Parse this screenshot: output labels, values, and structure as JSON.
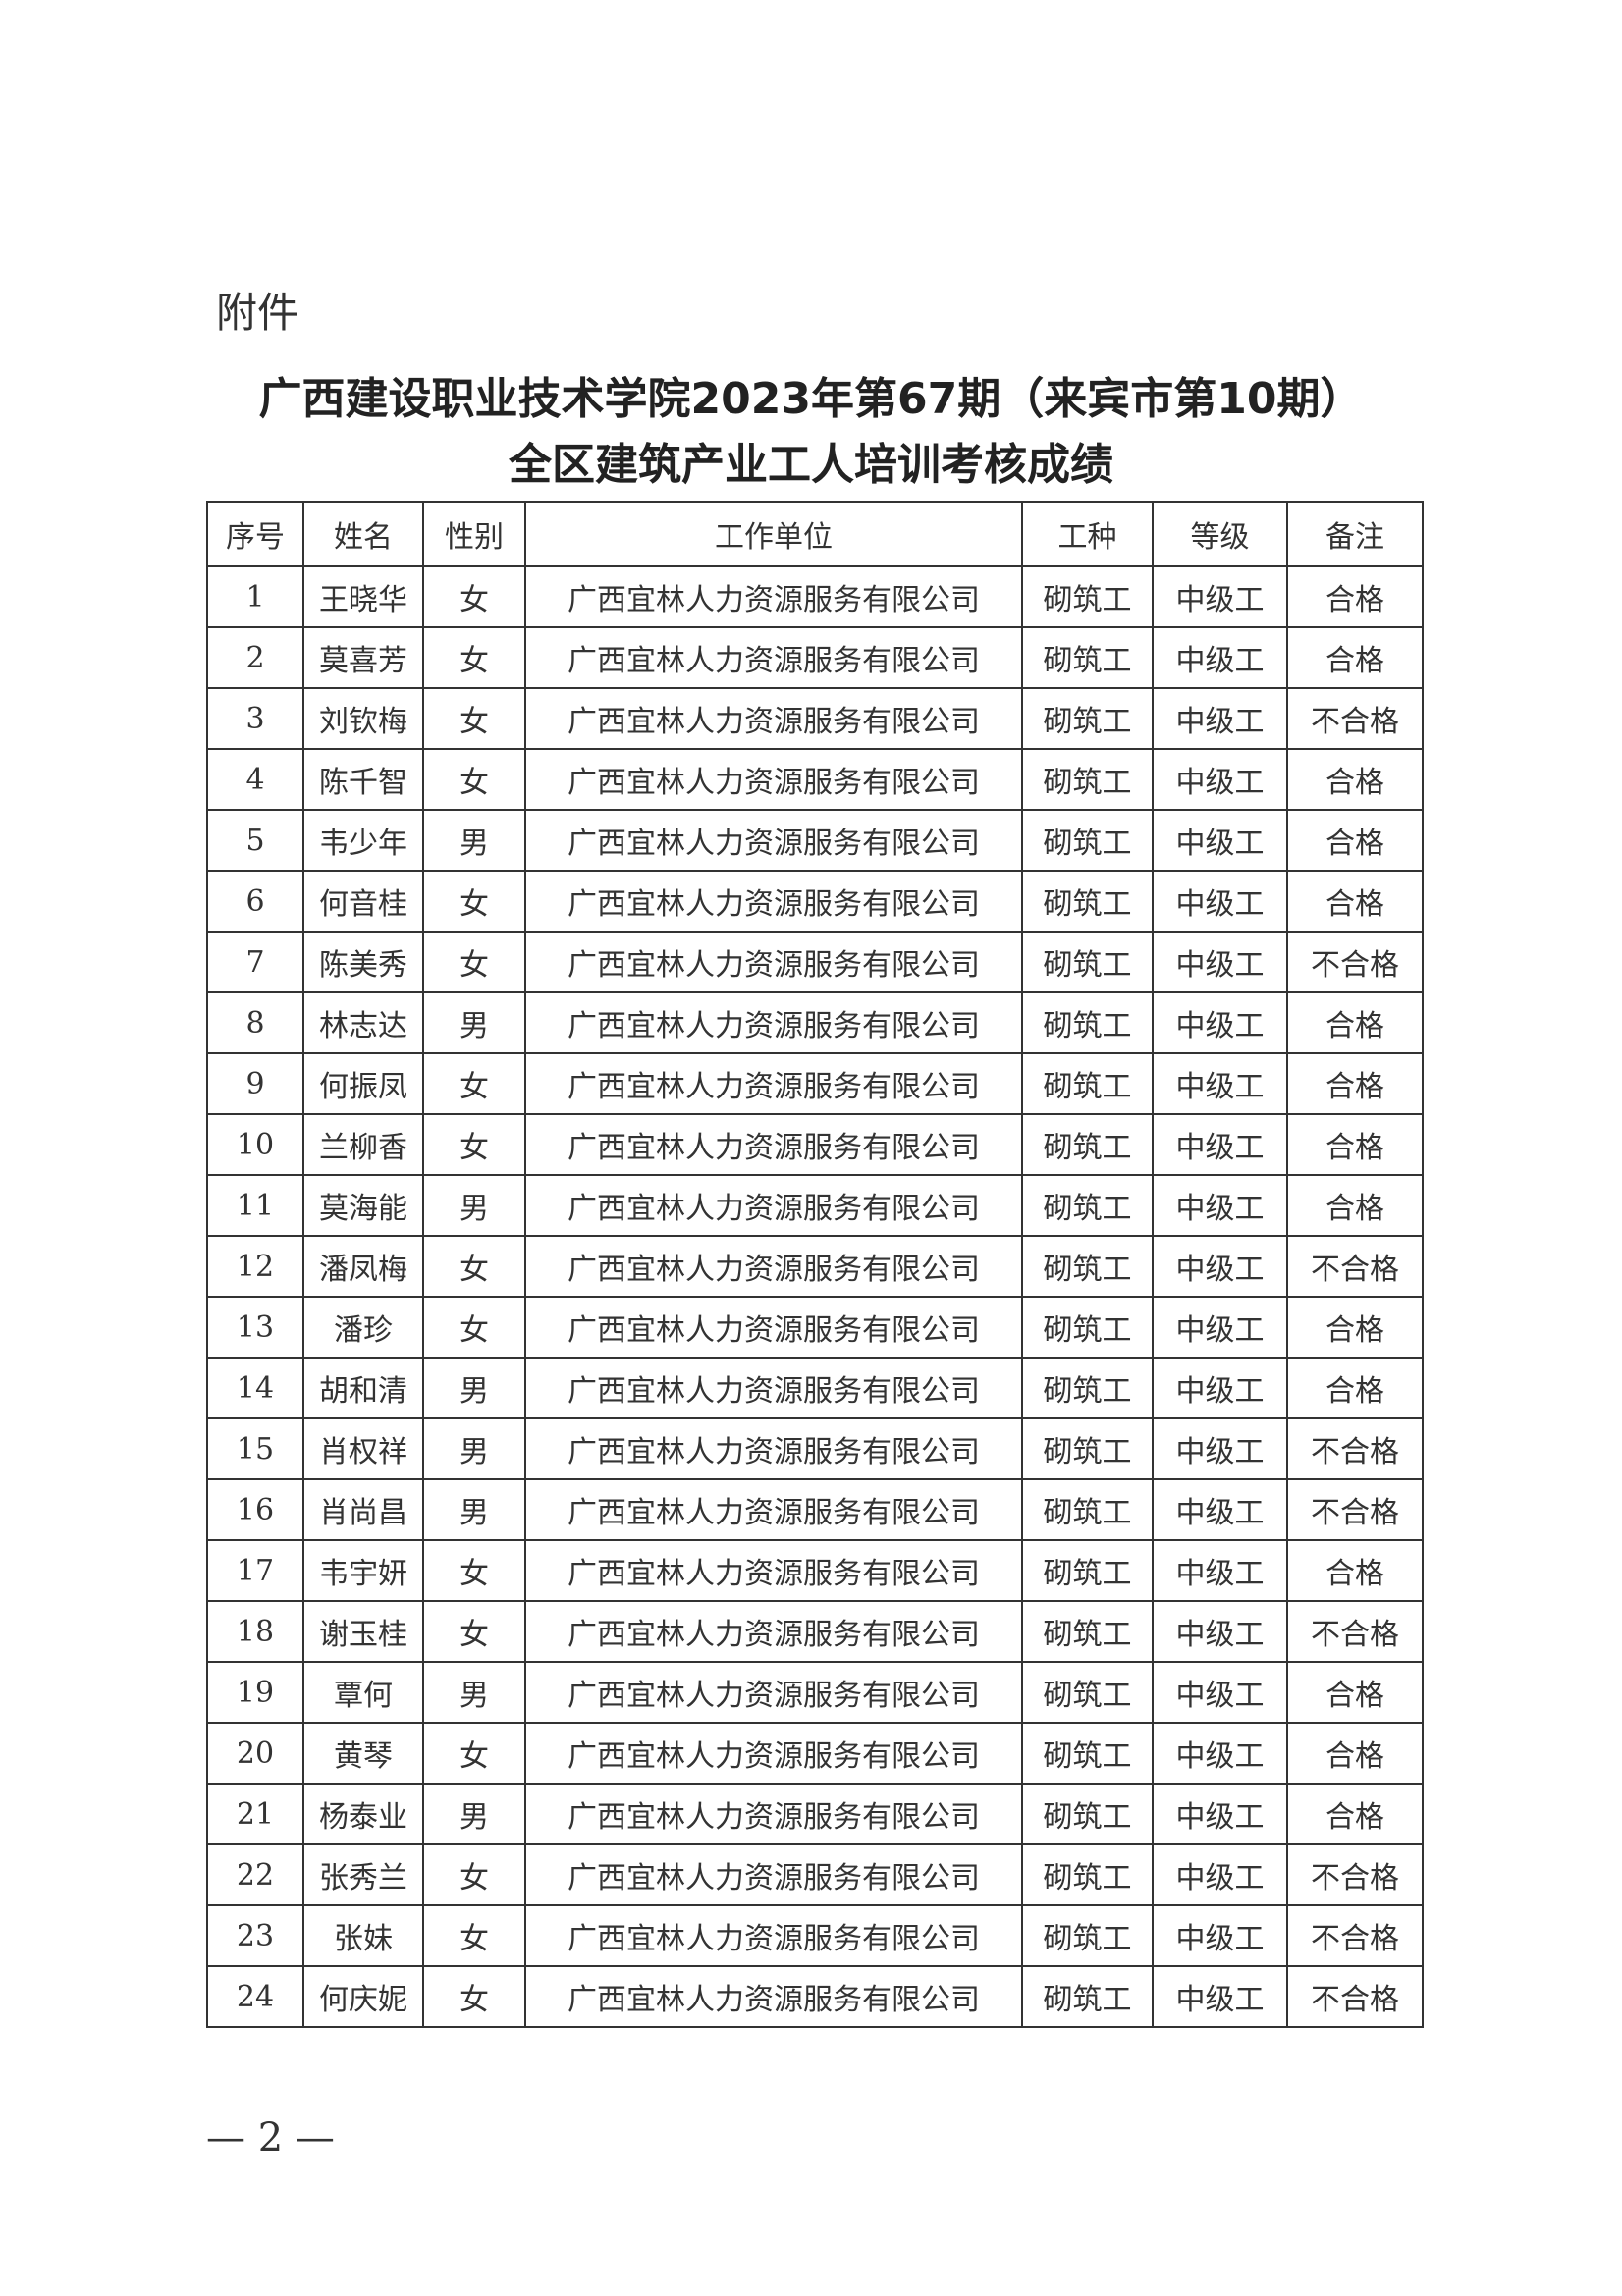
{
  "attachment_label": "附件",
  "title_line1": "广西建设职业技术学院2023年第67期（来宾市第10期）",
  "title_line2": "全区建筑产业工人培训考核成绩",
  "table": {
    "headers": [
      "序号",
      "姓名",
      "性别",
      "工作单位",
      "工种",
      "等级",
      "备注"
    ],
    "rows": [
      [
        "1",
        "王晓华",
        "女",
        "广西宜林人力资源服务有限公司",
        "砌筑工",
        "中级工",
        "合格"
      ],
      [
        "2",
        "莫喜芳",
        "女",
        "广西宜林人力资源服务有限公司",
        "砌筑工",
        "中级工",
        "合格"
      ],
      [
        "3",
        "刘钦梅",
        "女",
        "广西宜林人力资源服务有限公司",
        "砌筑工",
        "中级工",
        "不合格"
      ],
      [
        "4",
        "陈千智",
        "女",
        "广西宜林人力资源服务有限公司",
        "砌筑工",
        "中级工",
        "合格"
      ],
      [
        "5",
        "韦少年",
        "男",
        "广西宜林人力资源服务有限公司",
        "砌筑工",
        "中级工",
        "合格"
      ],
      [
        "6",
        "何音桂",
        "女",
        "广西宜林人力资源服务有限公司",
        "砌筑工",
        "中级工",
        "合格"
      ],
      [
        "7",
        "陈美秀",
        "女",
        "广西宜林人力资源服务有限公司",
        "砌筑工",
        "中级工",
        "不合格"
      ],
      [
        "8",
        "林志达",
        "男",
        "广西宜林人力资源服务有限公司",
        "砌筑工",
        "中级工",
        "合格"
      ],
      [
        "9",
        "何振凤",
        "女",
        "广西宜林人力资源服务有限公司",
        "砌筑工",
        "中级工",
        "合格"
      ],
      [
        "10",
        "兰柳香",
        "女",
        "广西宜林人力资源服务有限公司",
        "砌筑工",
        "中级工",
        "合格"
      ],
      [
        "11",
        "莫海能",
        "男",
        "广西宜林人力资源服务有限公司",
        "砌筑工",
        "中级工",
        "合格"
      ],
      [
        "12",
        "潘凤梅",
        "女",
        "广西宜林人力资源服务有限公司",
        "砌筑工",
        "中级工",
        "不合格"
      ],
      [
        "13",
        "潘珍",
        "女",
        "广西宜林人力资源服务有限公司",
        "砌筑工",
        "中级工",
        "合格"
      ],
      [
        "14",
        "胡和清",
        "男",
        "广西宜林人力资源服务有限公司",
        "砌筑工",
        "中级工",
        "合格"
      ],
      [
        "15",
        "肖权祥",
        "男",
        "广西宜林人力资源服务有限公司",
        "砌筑工",
        "中级工",
        "不合格"
      ],
      [
        "16",
        "肖尚昌",
        "男",
        "广西宜林人力资源服务有限公司",
        "砌筑工",
        "中级工",
        "不合格"
      ],
      [
        "17",
        "韦宇妍",
        "女",
        "广西宜林人力资源服务有限公司",
        "砌筑工",
        "中级工",
        "合格"
      ],
      [
        "18",
        "谢玉桂",
        "女",
        "广西宜林人力资源服务有限公司",
        "砌筑工",
        "中级工",
        "不合格"
      ],
      [
        "19",
        "覃何",
        "男",
        "广西宜林人力资源服务有限公司",
        "砌筑工",
        "中级工",
        "合格"
      ],
      [
        "20",
        "黄琴",
        "女",
        "广西宜林人力资源服务有限公司",
        "砌筑工",
        "中级工",
        "合格"
      ],
      [
        "21",
        "杨泰业",
        "男",
        "广西宜林人力资源服务有限公司",
        "砌筑工",
        "中级工",
        "合格"
      ],
      [
        "22",
        "张秀兰",
        "女",
        "广西宜林人力资源服务有限公司",
        "砌筑工",
        "中级工",
        "不合格"
      ],
      [
        "23",
        "张妹",
        "女",
        "广西宜林人力资源服务有限公司",
        "砌筑工",
        "中级工",
        "不合格"
      ],
      [
        "24",
        "何庆妮",
        "女",
        "广西宜林人力资源服务有限公司",
        "砌筑工",
        "中级工",
        "不合格"
      ]
    ]
  },
  "page_number": "— 2 —"
}
